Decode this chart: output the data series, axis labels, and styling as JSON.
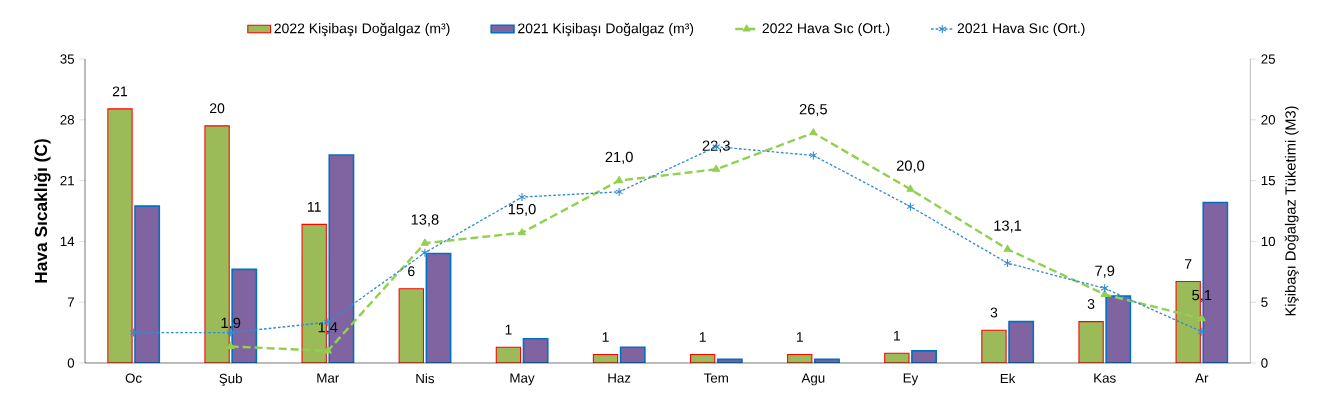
{
  "chart_data": {
    "type": "bar",
    "ylabel": "Hava Sıcaklığı (C)",
    "y2label": "Kişibaşı Doğalgaz Tüketimi (M3)",
    "categories": [
      "Oc",
      "Şub",
      "Mar",
      "Nis",
      "May",
      "Haz",
      "Tem",
      "Agu",
      "Ey",
      "Ek",
      "Kas",
      "Ar"
    ],
    "series": [
      {
        "name": "2022 Kişibaşı Doğalgaz (m³)",
        "axis": "y2",
        "color": "#9bbb59",
        "values": [
          20.9,
          19.5,
          11.4,
          6.1,
          1.3,
          0.7,
          0.7,
          0.7,
          0.8,
          2.7,
          3.4,
          6.7
        ],
        "value_labels": [
          "21",
          "20",
          "11",
          "6",
          "1",
          "1",
          "1",
          "1",
          "1",
          "3",
          "3",
          "7"
        ]
      },
      {
        "name": "2021 Kişibaşı Doğalgaz (m³)",
        "axis": "y2",
        "color": "#8064a2",
        "values": [
          12.9,
          7.7,
          17.1,
          9.0,
          2.0,
          1.3,
          0.3,
          0.3,
          1.0,
          3.4,
          5.5,
          13.2
        ]
      },
      {
        "name": "2022 Hava Sıc (Ort.)",
        "type": "line",
        "axis": "y",
        "color": "#92d050",
        "marker": "triangle",
        "line_style": "dashed",
        "values": [
          null,
          1.9,
          1.4,
          13.8,
          15.0,
          21.0,
          22.3,
          26.5,
          20.0,
          13.1,
          7.9,
          5.1
        ],
        "value_labels": [
          null,
          "1,9",
          "1,4",
          "13,8",
          "15,0",
          "21,0",
          "22,3",
          "26,5",
          "20,0",
          "13,1",
          "7,9",
          "5,1"
        ]
      },
      {
        "name": "2021 Hava Sıc (Ort.)",
        "type": "line",
        "axis": "y",
        "color": "#2e8bd6",
        "marker": "cross",
        "line_style": "dotted",
        "values": [
          3.5,
          3.5,
          4.7,
          12.7,
          19.1,
          19.7,
          24.9,
          23.9,
          18.0,
          11.5,
          8.6,
          3.6
        ]
      }
    ],
    "ylim": [
      0,
      35
    ],
    "yticks": [
      0,
      7,
      14,
      21,
      28,
      35
    ],
    "y2lim": [
      0,
      25
    ],
    "y2ticks": [
      0,
      5,
      10,
      15,
      20,
      25
    ],
    "legend": "top",
    "grid": false
  }
}
